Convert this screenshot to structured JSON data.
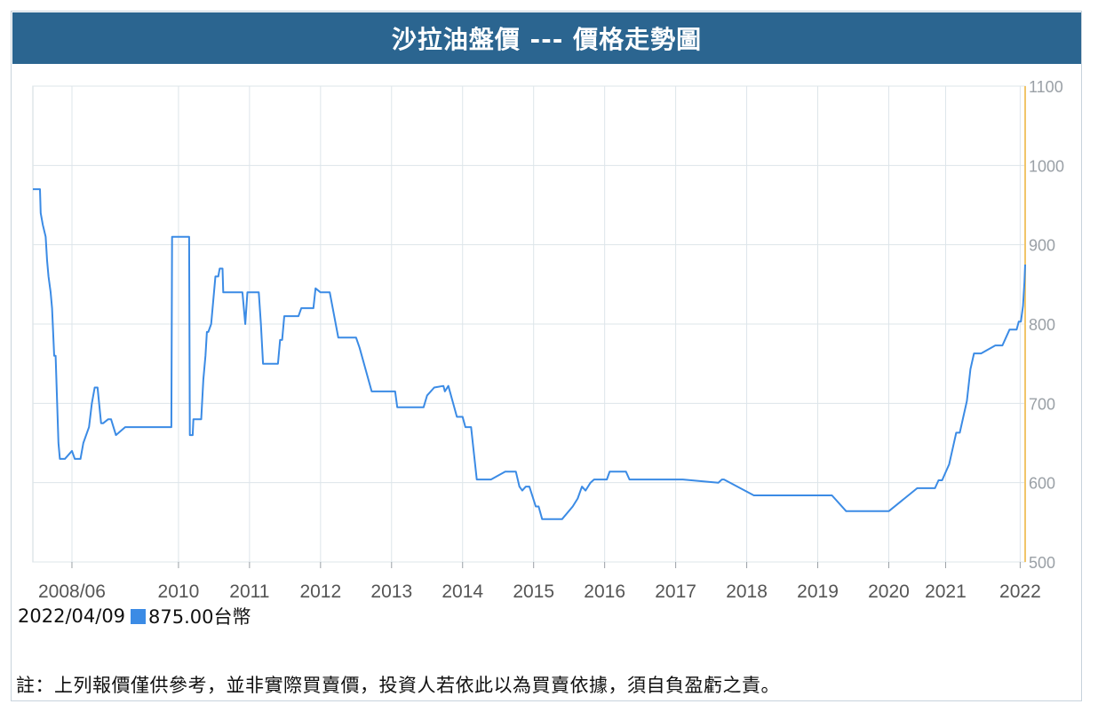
{
  "title": "沙拉油盤價 --- 價格走勢圖",
  "chart_data": {
    "type": "line",
    "title": "沙拉油盤價 --- 價格走勢圖",
    "ylim": [
      500,
      1100
    ],
    "yticks": [
      "500",
      "600",
      "700",
      "800",
      "900",
      "1000",
      "1100"
    ],
    "x_tick_labels": [
      {
        "label": "2008/06",
        "x": 2008.3
      },
      {
        "label": "2010",
        "x": 2009.8
      },
      {
        "label": "2011",
        "x": 2010.8
      },
      {
        "label": "2012",
        "x": 2011.8
      },
      {
        "label": "2013",
        "x": 2012.8
      },
      {
        "label": "2014",
        "x": 2013.8
      },
      {
        "label": "2015",
        "x": 2014.8
      },
      {
        "label": "2016",
        "x": 2015.8
      },
      {
        "label": "2017",
        "x": 2016.8
      },
      {
        "label": "2018",
        "x": 2017.8
      },
      {
        "label": "2019",
        "x": 2018.8
      },
      {
        "label": "2020",
        "x": 2019.8
      },
      {
        "label": "2021",
        "x": 2020.6
      },
      {
        "label": "2022",
        "x": 2021.65
      }
    ],
    "xlim": [
      2007.75,
      2021.72
    ],
    "grid": true,
    "color": "#3b8be5",
    "series": [
      {
        "x": [
          2007.75,
          2007.85,
          2007.86,
          2007.89,
          2007.93,
          2007.95,
          2007.97,
          2008.0,
          2008.02,
          2008.05,
          2008.07,
          2008.11,
          2008.13,
          2008.16,
          2008.2,
          2008.3,
          2008.34,
          2008.42,
          2008.46,
          2008.54,
          2008.58,
          2008.62,
          2008.66,
          2008.71,
          2008.74,
          2008.81,
          2008.85,
          2008.92,
          2009.05,
          2009.12,
          2009.18,
          2009.22,
          2009.45,
          2009.7,
          2009.71,
          2009.9,
          2009.95,
          2009.96,
          2010.0,
          2010.01,
          2010.12,
          2010.15,
          2010.18,
          2010.2,
          2010.22,
          2010.26,
          2010.32,
          2010.36,
          2010.38,
          2010.4,
          2010.42,
          2010.43,
          2010.49,
          2010.5,
          2010.7,
          2010.74,
          2010.77,
          2010.79,
          2010.93,
          2010.96,
          2010.99,
          2011.2,
          2011.23,
          2011.26,
          2011.29,
          2011.46,
          2011.49,
          2011.53,
          2011.63,
          2011.7,
          2011.73,
          2011.8,
          2011.93,
          2012.05,
          2012.3,
          2012.35,
          2012.52,
          2012.75,
          2012.8,
          2012.85,
          2012.88,
          2013.25,
          2013.3,
          2013.4,
          2013.53,
          2013.55,
          2013.6,
          2013.72,
          2013.8,
          2013.84,
          2013.92,
          2013.95,
          2014.0,
          2014.2,
          2014.4,
          2014.55,
          2014.6,
          2014.64,
          2014.69,
          2014.74,
          2014.83,
          2014.87,
          2014.92,
          2015.0,
          2015.2,
          2015.35,
          2015.42,
          2015.48,
          2015.53,
          2015.6,
          2015.65,
          2015.73,
          2015.8,
          2015.83,
          2015.87,
          2015.95,
          2016.02,
          2016.05,
          2016.1,
          2016.15,
          2016.3,
          2016.45,
          2016.9,
          2017.4,
          2017.45,
          2017.48,
          2017.9,
          2018.2,
          2018.6,
          2019.0,
          2019.2,
          2019.8,
          2020.2,
          2020.3,
          2020.45,
          2020.5,
          2020.55,
          2020.6,
          2020.65,
          2020.7,
          2020.75,
          2020.8,
          2020.85,
          2020.9,
          2020.95,
          2021.0,
          2021.05,
          2021.1,
          2021.3,
          2021.4,
          2021.5,
          2021.6,
          2021.63,
          2021.66,
          2021.69,
          2021.71,
          2021.72
        ],
        "y": [
          970,
          970,
          940,
          925,
          910,
          880,
          860,
          840,
          820,
          760,
          760,
          650,
          630,
          630,
          630,
          640,
          630,
          630,
          650,
          670,
          700,
          720,
          720,
          675,
          675,
          680,
          680,
          660,
          670,
          670,
          670,
          670,
          670,
          670,
          910,
          910,
          910,
          660,
          660,
          680,
          680,
          730,
          760,
          790,
          790,
          800,
          860,
          860,
          870,
          870,
          870,
          840,
          840,
          840,
          840,
          800,
          840,
          840,
          840,
          800,
          750,
          750,
          780,
          780,
          810,
          810,
          810,
          820,
          820,
          820,
          845,
          840,
          840,
          783,
          783,
          770,
          715,
          715,
          715,
          715,
          695,
          695,
          710,
          720,
          722,
          715,
          722,
          683,
          683,
          670,
          670,
          645,
          604,
          604,
          614,
          614,
          595,
          590,
          595,
          595,
          570,
          570,
          554,
          554,
          554,
          570,
          580,
          595,
          590,
          600,
          604,
          604,
          604,
          604,
          614,
          614,
          614,
          614,
          614,
          604,
          604,
          604,
          604,
          600,
          604,
          604,
          584,
          584,
          584,
          584,
          564,
          564,
          593,
          593,
          593,
          603,
          603,
          613,
          623,
          643,
          663,
          663,
          683,
          703,
          743,
          763,
          763,
          763,
          773,
          773,
          793,
          793,
          803,
          803,
          823,
          853,
          875
        ]
      }
    ]
  },
  "quote": {
    "date": "2022/04/09",
    "value": "875.00台幣"
  },
  "note": "註：上列報價僅供參考，並非實際買賣價，投資人若依此以為買賣依據，須自負盈虧之責。"
}
